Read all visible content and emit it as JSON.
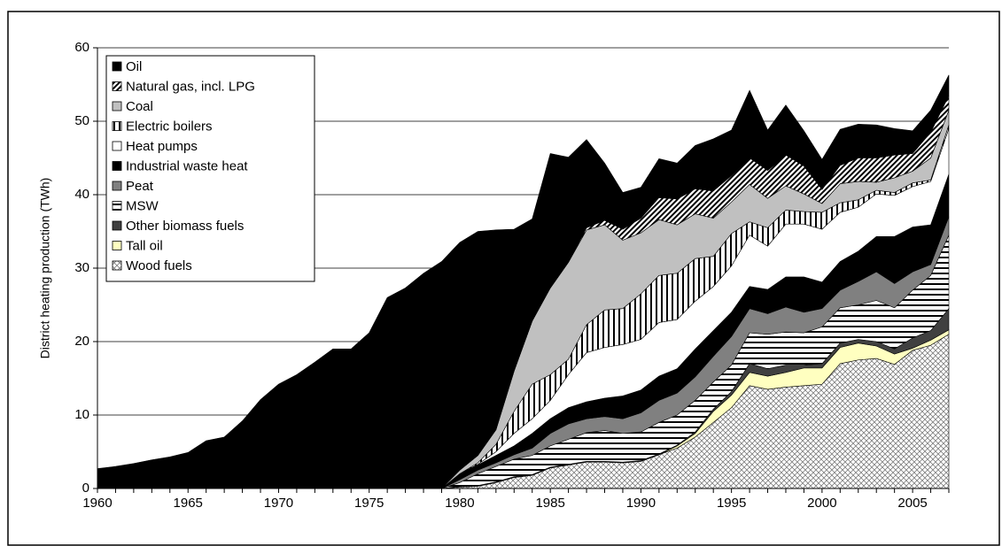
{
  "chart_data": {
    "type": "stacked-area",
    "y_label": "District heating production (TWh)",
    "x": [
      1960,
      1961,
      1962,
      1963,
      1964,
      1965,
      1966,
      1967,
      1968,
      1969,
      1970,
      1971,
      1972,
      1973,
      1974,
      1975,
      1976,
      1977,
      1978,
      1979,
      1980,
      1981,
      1982,
      1983,
      1984,
      1985,
      1986,
      1987,
      1988,
      1989,
      1990,
      1991,
      1992,
      1993,
      1994,
      1995,
      1996,
      1997,
      1998,
      1999,
      2000,
      2001,
      2002,
      2003,
      2004,
      2005,
      2006,
      2007
    ],
    "xlim": [
      1960,
      2007
    ],
    "xticks": [
      1960,
      1965,
      1970,
      1975,
      1980,
      1985,
      1990,
      1995,
      2000,
      2005
    ],
    "ylim": [
      0,
      60
    ],
    "yticks": [
      0,
      10,
      20,
      30,
      40,
      50,
      60
    ],
    "grid": true,
    "legend": "top-left",
    "series": [
      {
        "name": "Wood fuels",
        "color": "#808080",
        "pattern": "crosshatch",
        "values": [
          0,
          0,
          0,
          0,
          0,
          0,
          0,
          0,
          0,
          0,
          0,
          0,
          0,
          0,
          0,
          0,
          0,
          0,
          0,
          0,
          0.2,
          0.3,
          0.8,
          1.5,
          1.8,
          2.8,
          3.2,
          3.6,
          3.6,
          3.5,
          3.7,
          4.6,
          5.5,
          7.0,
          9.0,
          11.0,
          14.0,
          13.5,
          13.8,
          14.0,
          14.2,
          17.0,
          17.5,
          17.7,
          16.9,
          18.8,
          19.5,
          21.0
        ]
      },
      {
        "name": "Tall oil",
        "color": "#ffffc0",
        "values": [
          0,
          0,
          0,
          0,
          0,
          0,
          0,
          0,
          0,
          0,
          0,
          0,
          0,
          0,
          0,
          0,
          0,
          0,
          0,
          0,
          0,
          0,
          0,
          0,
          0,
          0,
          0,
          0,
          0,
          0,
          0,
          0,
          0.3,
          0.5,
          1.5,
          1.7,
          1.8,
          1.8,
          2.0,
          2.4,
          2.2,
          2.2,
          2.3,
          1.7,
          1.4,
          0.3,
          0.7,
          0.6
        ]
      },
      {
        "name": "Other biomass fuels",
        "color": "#404040",
        "values": [
          0,
          0,
          0,
          0,
          0,
          0,
          0,
          0,
          0,
          0,
          0,
          0,
          0,
          0,
          0,
          0,
          0,
          0,
          0,
          0,
          0.1,
          0.1,
          0.1,
          0.1,
          0.1,
          0.1,
          0.1,
          0.1,
          0.1,
          0.1,
          0.1,
          0.1,
          0.1,
          0.2,
          0.3,
          0.5,
          1.2,
          1.0,
          1.0,
          0.4,
          0.6,
          0.6,
          0.5,
          0.6,
          0.7,
          1.4,
          1.3,
          2.9
        ]
      },
      {
        "name": "MSW",
        "color": "#000000",
        "pattern": "horizontal",
        "values": [
          0,
          0,
          0,
          0,
          0,
          0,
          0,
          0,
          0,
          0,
          0,
          0,
          0,
          0,
          0,
          0,
          0,
          0,
          0,
          0,
          0.5,
          1.6,
          2.1,
          2.4,
          2.6,
          2.9,
          3.4,
          3.9,
          4.2,
          3.9,
          3.9,
          4.3,
          4.1,
          4.3,
          3.7,
          3.6,
          4.2,
          4.7,
          4.5,
          4.4,
          5.0,
          4.8,
          4.7,
          5.6,
          5.6,
          6.5,
          7.5,
          10.0
        ]
      },
      {
        "name": "Peat",
        "color": "#808080",
        "values": [
          0,
          0,
          0,
          0,
          0,
          0,
          0,
          0,
          0,
          0,
          0,
          0,
          0,
          0,
          0,
          0,
          0,
          0,
          0,
          0,
          0.4,
          0.5,
          0.5,
          0.6,
          1.0,
          1.7,
          2.1,
          1.9,
          1.9,
          2.0,
          2.6,
          3.0,
          3.0,
          3.2,
          3.5,
          3.9,
          3.3,
          2.8,
          3.4,
          2.8,
          2.5,
          2.4,
          3.2,
          3.9,
          3.3,
          2.5,
          1.5,
          2.5
        ]
      },
      {
        "name": "Industrial waste heat",
        "color": "#000000",
        "values": [
          0,
          0,
          0,
          0,
          0,
          0,
          0,
          0,
          0,
          0,
          0,
          0,
          0,
          0,
          0,
          0,
          0,
          0,
          0,
          0,
          0.8,
          0.7,
          1.0,
          1.2,
          2.0,
          2.0,
          2.2,
          2.3,
          2.5,
          3.1,
          3.1,
          3.3,
          3.3,
          3.8,
          3.5,
          3.3,
          3.0,
          3.3,
          4.1,
          4.8,
          3.6,
          3.9,
          4.1,
          4.8,
          6.4,
          6.1,
          5.4,
          5.8
        ]
      },
      {
        "name": "Heat pumps",
        "color": "#ffffff",
        "values": [
          0,
          0,
          0,
          0,
          0,
          0,
          0,
          0,
          0,
          0,
          0,
          0,
          0,
          0,
          0,
          0,
          0,
          0,
          0,
          0,
          0,
          0.1,
          0.5,
          1.7,
          2.0,
          2.5,
          4.5,
          6.7,
          6.9,
          7.0,
          6.9,
          7.3,
          6.7,
          6.5,
          6.0,
          6.3,
          7.0,
          5.9,
          7.2,
          7.2,
          7.2,
          6.7,
          6.0,
          5.8,
          5.6,
          5.5,
          5.9,
          6.2
        ]
      },
      {
        "name": "Electric boilers",
        "color": "#000000",
        "pattern": "vertical",
        "values": [
          0,
          0,
          0,
          0,
          0,
          0,
          0,
          0,
          0,
          0,
          0,
          0,
          0,
          0,
          0,
          0,
          0,
          0,
          0,
          0,
          0,
          0.2,
          1.0,
          3.0,
          4.7,
          3.5,
          2.1,
          3.8,
          5.1,
          4.9,
          6.2,
          6.4,
          6.3,
          5.8,
          4.1,
          4.4,
          1.8,
          2.5,
          1.9,
          1.7,
          2.3,
          1.3,
          1.0,
          0.5,
          0.4,
          0.5,
          0.2,
          0.5
        ]
      },
      {
        "name": "Coal",
        "color": "#c0c0c0",
        "values": [
          0,
          0,
          0,
          0,
          0,
          0,
          0,
          0,
          0,
          0,
          0,
          0,
          0,
          0,
          0,
          0,
          0,
          0,
          0,
          0,
          0.5,
          1.0,
          2.0,
          5.5,
          8.6,
          11.8,
          13.2,
          12.9,
          11.6,
          9.3,
          8.3,
          7.6,
          6.6,
          6.1,
          5.2,
          4.3,
          5.1,
          4.0,
          3.3,
          2.4,
          1.2,
          2.6,
          2.5,
          1.1,
          2.0,
          1.6,
          3.0,
          2.0
        ]
      },
      {
        "name": "Natural gas, incl. LPG",
        "color": "#000000",
        "pattern": "diagonal",
        "values": [
          0,
          0,
          0,
          0,
          0,
          0,
          0,
          0,
          0,
          0,
          0,
          0,
          0,
          0,
          0,
          0,
          0,
          0,
          0,
          0,
          0,
          0,
          0,
          0,
          0,
          0,
          0,
          0.3,
          0.6,
          1.5,
          2.0,
          3.0,
          3.5,
          3.4,
          3.7,
          3.6,
          3.6,
          3.8,
          4.2,
          3.8,
          1.9,
          2.5,
          3.2,
          3.3,
          3.1,
          2.4,
          3.5,
          2.0
        ]
      },
      {
        "name": "Oil",
        "color": "#000000",
        "values": [
          2.7,
          3.0,
          3.4,
          3.9,
          4.3,
          4.9,
          6.5,
          7.0,
          9.2,
          12.1,
          14.2,
          15.5,
          17.2,
          19.0,
          19.0,
          21.2,
          26.0,
          27.3,
          29.3,
          30.9,
          31.0,
          30.5,
          27.2,
          19.3,
          13.9,
          18.3,
          14.3,
          12.0,
          7.8,
          5.0,
          4.2,
          5.3,
          4.9,
          5.9,
          7.1,
          6.2,
          9.2,
          5.5,
          6.8,
          4.8,
          4.1,
          4.9,
          4.6,
          4.5,
          3.6,
          3.1,
          3.0,
          2.8
        ]
      }
    ]
  }
}
